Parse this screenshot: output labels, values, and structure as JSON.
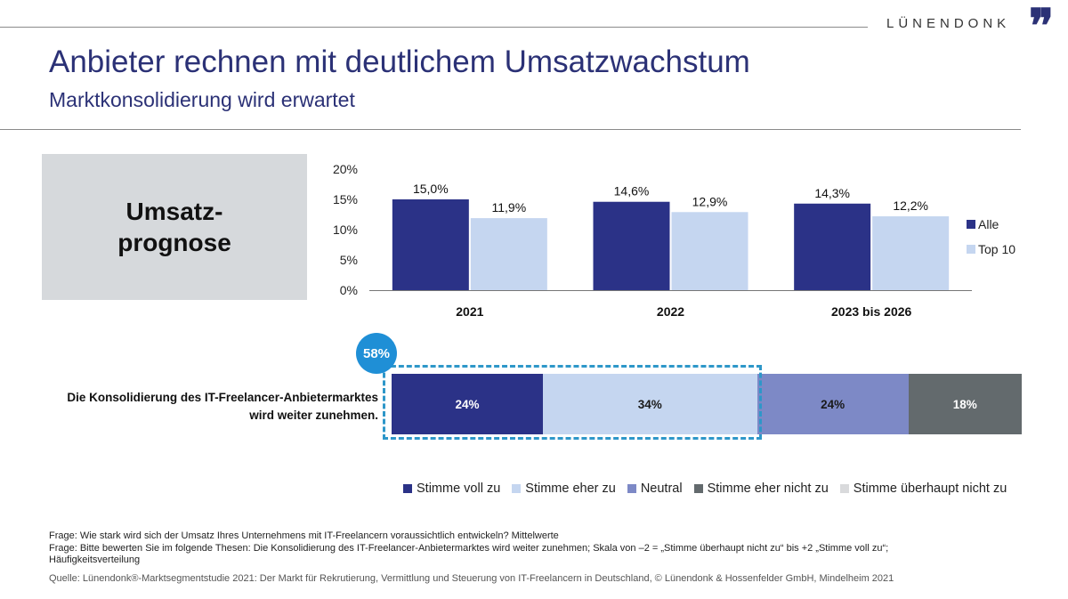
{
  "header": {
    "brand": "LÜNENDONK",
    "brand_mark": "❞",
    "title": "Anbieter rechnen mit deutlichem Umsatzwachstum",
    "subtitle": "Marktkonsolidierung wird erwartet"
  },
  "prognose_box": {
    "line1": "Umsatz-",
    "line2": "prognose"
  },
  "colors": {
    "title": "#2b3176",
    "alle": "#2b3287",
    "top10": "#c5d6f0",
    "stimme_voll": "#2b3287",
    "stimme_eher": "#c5d6f0",
    "neutral": "#7d89c6",
    "eher_nicht": "#636a6d",
    "ueberhaupt_nicht": "#d9dadc",
    "badge": "#1f8fd6"
  },
  "chart_data": [
    {
      "type": "bar",
      "title": "Umsatzprognose",
      "categories": [
        "2021",
        "2022",
        "2023 bis 2026"
      ],
      "series": [
        {
          "name": "Alle",
          "values": [
            15.0,
            14.6,
            14.3
          ],
          "labels": [
            "15,0%",
            "14,6%",
            "14,3%"
          ]
        },
        {
          "name": "Top 10",
          "values": [
            11.9,
            12.9,
            12.2
          ],
          "labels": [
            "11,9%",
            "12,9%",
            "12,2%"
          ]
        }
      ],
      "yticks": [
        "0%",
        "5%",
        "10%",
        "15%",
        "20%"
      ],
      "ytick_values": [
        0,
        5,
        10,
        15,
        20
      ],
      "ylim": [
        0,
        20
      ],
      "xlabel": "",
      "ylabel": "",
      "legend": "right",
      "grid": false
    },
    {
      "type": "bar",
      "stacked": true,
      "orientation": "horizontal",
      "category": "Die Konsolidierung des IT-Freelancer-Anbietermarktes wird weiter zunehmen.",
      "category_lines": [
        "Die Konsolidierung des IT-Freelancer-Anbietermarktes",
        "wird weiter zunehmen."
      ],
      "series": [
        {
          "name": "Stimme voll zu",
          "value": 24,
          "label": "24%"
        },
        {
          "name": "Stimme eher zu",
          "value": 34,
          "label": "34%"
        },
        {
          "name": "Neutral",
          "value": 24,
          "label": "24%"
        },
        {
          "name": "Stimme eher nicht zu",
          "value": 18,
          "label": "18%"
        },
        {
          "name": "Stimme überhaupt nicht zu",
          "value": 0,
          "label": ""
        }
      ],
      "highlight_total": "58%",
      "legend": "bottom"
    }
  ],
  "footnotes": [
    "Frage: Wie stark wird sich der Umsatz Ihres Unternehmens mit IT-Freelancern voraussichtlich entwickeln? Mittelwerte",
    "Frage: Bitte bewerten Sie im folgende Thesen: Die Konsolidierung des IT-Freelancer-Anbietermarktes wird weiter zunehmen; Skala von –2 = „Stimme überhaupt nicht zu“ bis +2 „Stimme voll zu“;",
    "Häufigkeitsverteilung"
  ],
  "source": "Quelle: Lünendonk®-Marktsegmentstudie 2021: Der Markt für Rekrutierung, Vermittlung und Steuerung von IT-Freelancern in Deutschland, © Lünendonk & Hossenfelder GmbH, Mindelheim 2021"
}
